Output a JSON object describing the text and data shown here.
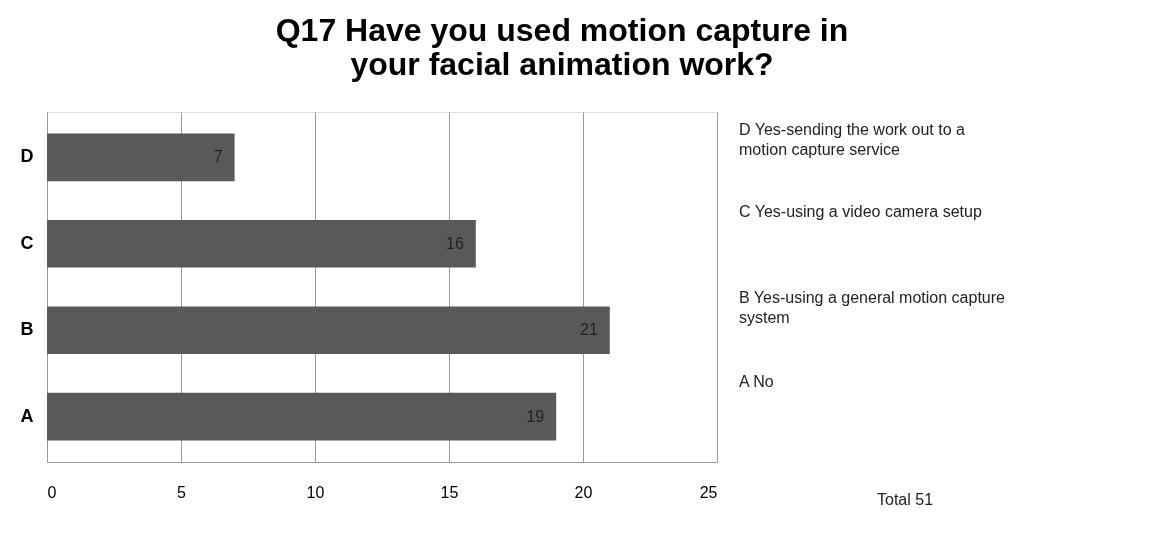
{
  "chart_data": {
    "type": "bar",
    "orientation": "horizontal",
    "title": "Q17 Have you used motion capture in your facial animation work?",
    "categories": [
      "D",
      "C",
      "B",
      "A"
    ],
    "values": [
      7,
      16,
      21,
      19
    ],
    "color": "#595959",
    "xlim": [
      0,
      25
    ],
    "xticks": [
      0,
      5,
      10,
      15,
      20,
      25
    ],
    "grid": "x",
    "data_labels": true,
    "annotations": [
      "D Yes-sending the work out to a motion capture service",
      "C Yes-using a video camera setup",
      "B Yes-using a general motion capture system",
      "A No",
      "Total 51"
    ]
  }
}
